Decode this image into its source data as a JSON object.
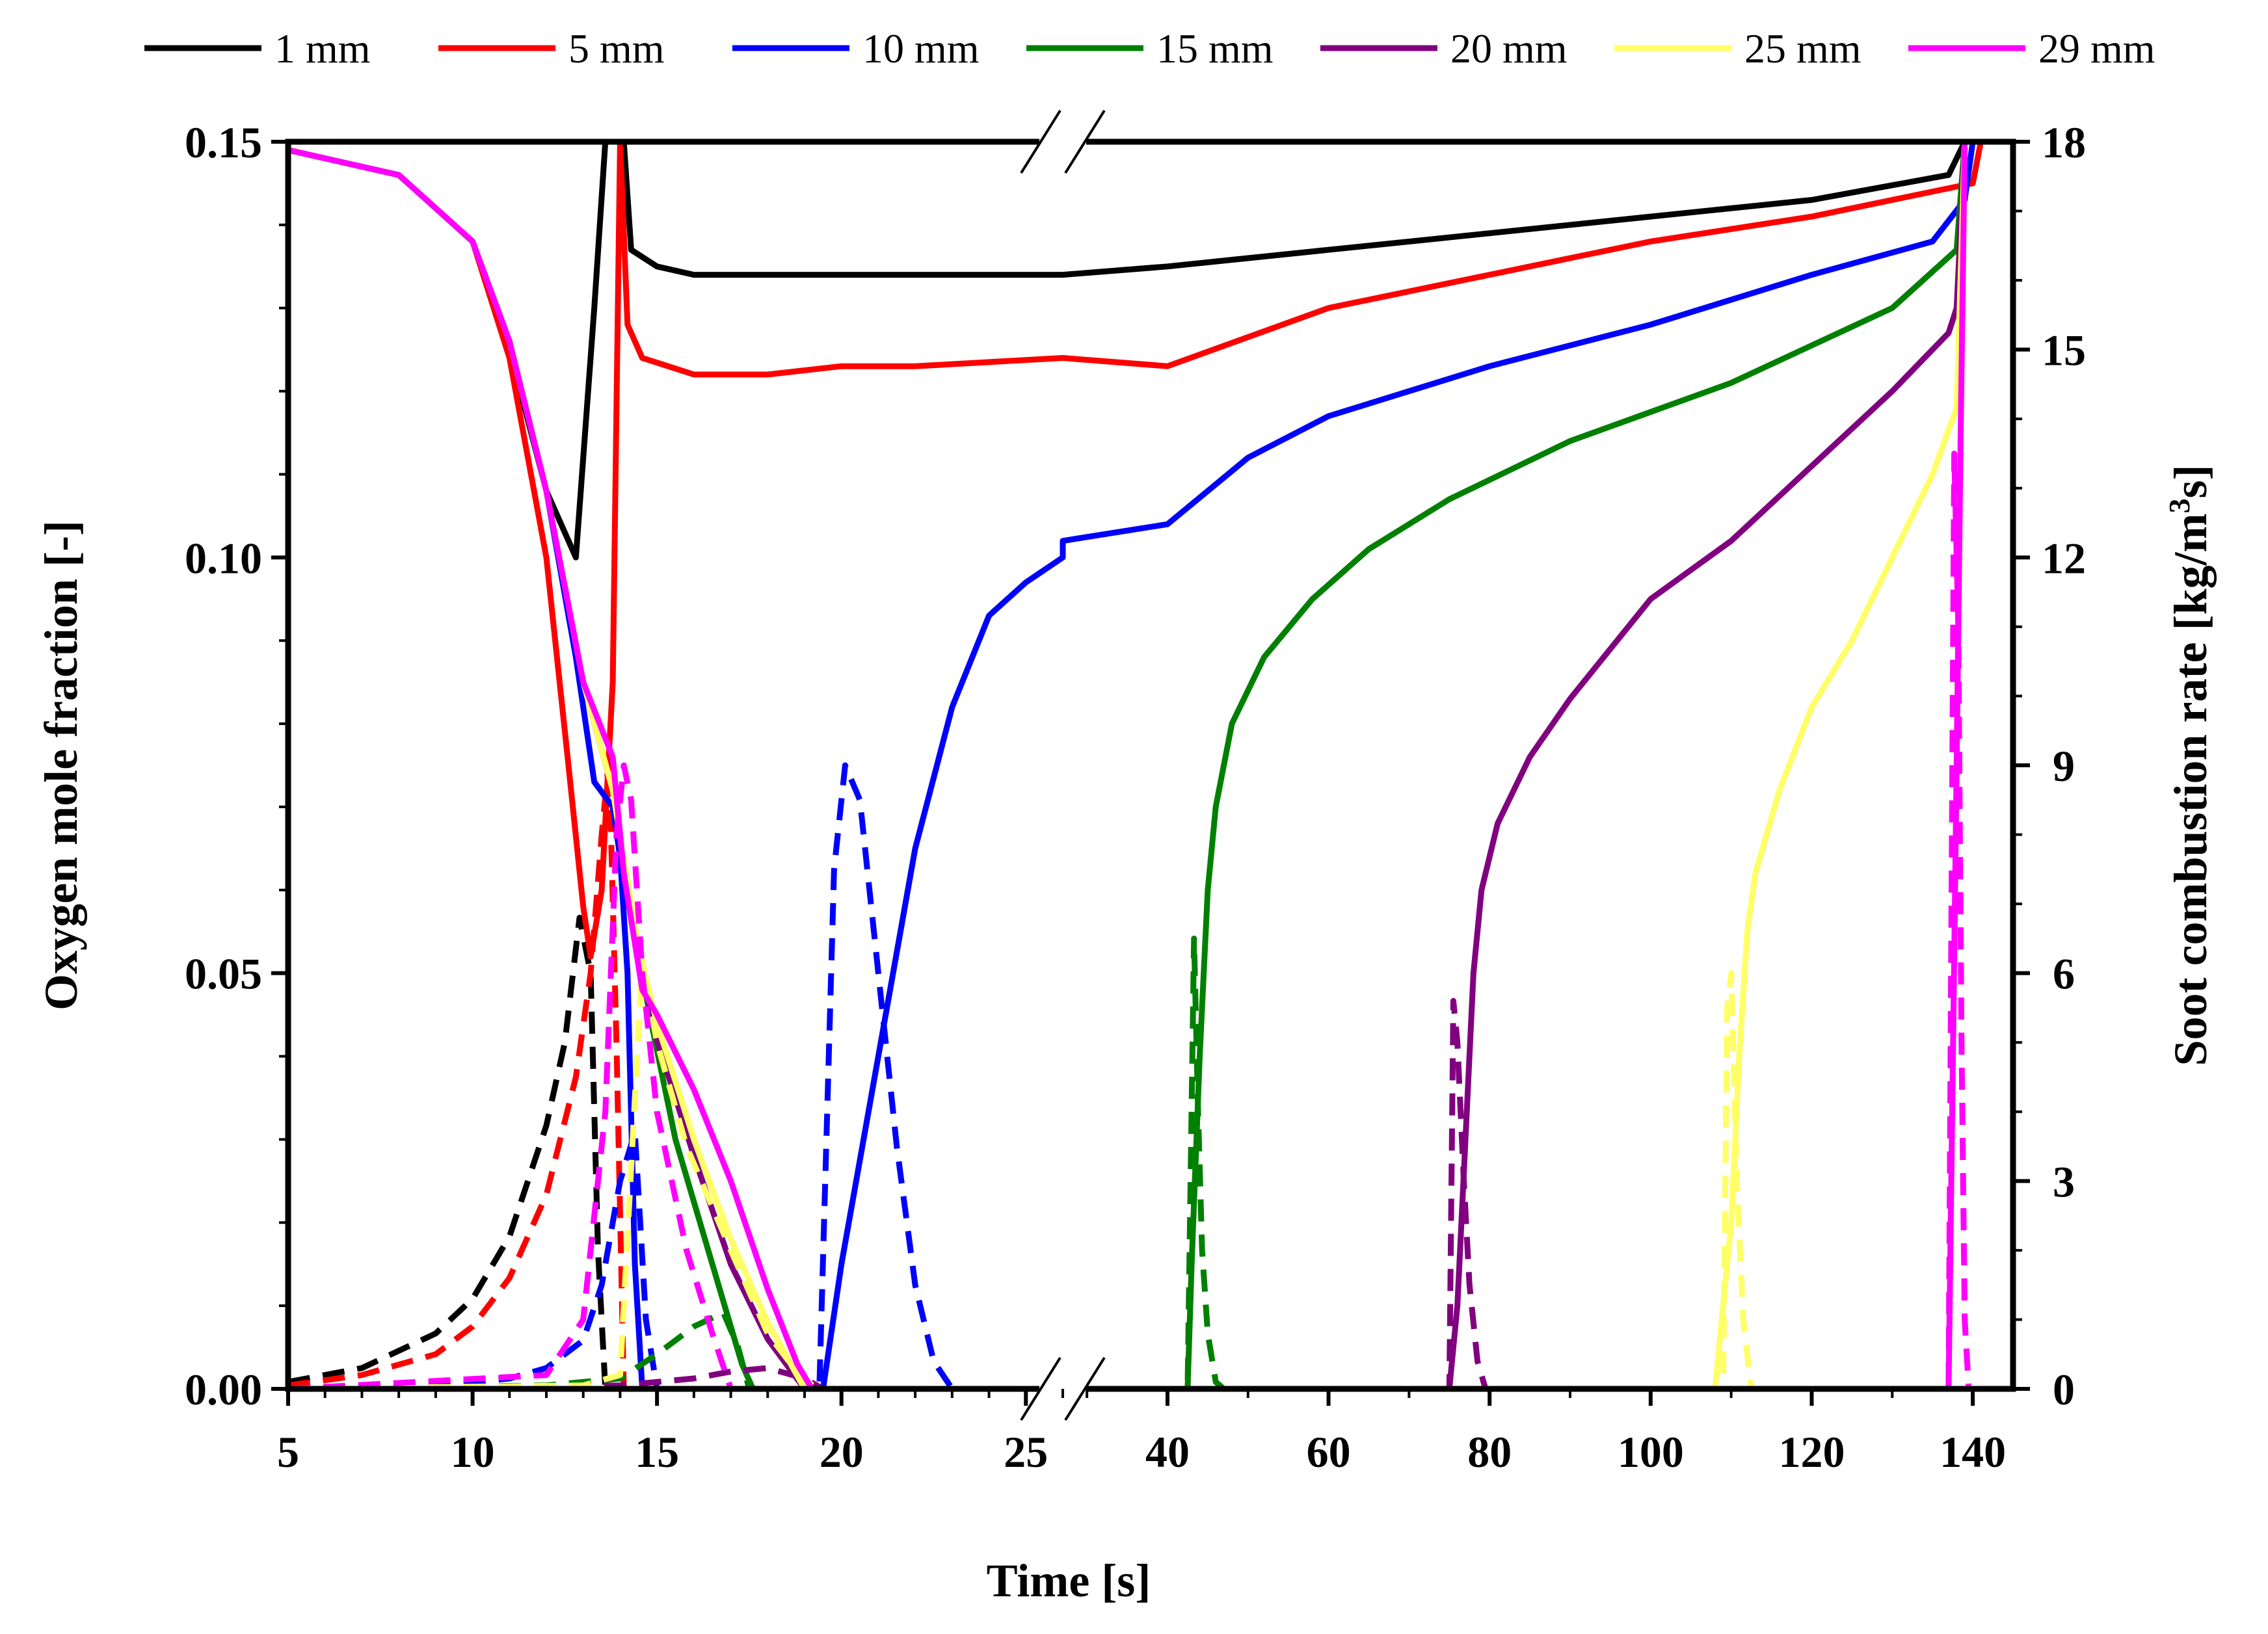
{
  "chart_data": {
    "type": "line",
    "title": "",
    "xlabel": "Time [s]",
    "ylabel_left": "Oxygen mole fraction [-]",
    "ylabel_right_parts": [
      "Soot combustion rate [kg/m",
      "3",
      "s]"
    ],
    "x_break": {
      "segment1": {
        "range": [
          5,
          26
        ],
        "ticks": [
          5,
          10,
          15,
          20,
          25
        ],
        "tick_labels": [
          "5",
          "10",
          "15",
          "20",
          "25"
        ]
      },
      "segment2": {
        "range": [
          27,
          145
        ],
        "ticks": [
          40,
          60,
          80,
          100,
          120,
          140
        ],
        "tick_labels": [
          "40",
          "60",
          "80",
          "100",
          "120",
          "140"
        ]
      }
    },
    "ylim_left": [
      0,
      0.15
    ],
    "yticks_left": [
      0,
      0.05,
      0.1,
      0.15
    ],
    "ytick_labels_left": [
      "0.00",
      "0.05",
      "0.10",
      "0.15"
    ],
    "ylim_right": [
      0,
      18
    ],
    "yticks_right": [
      0,
      3,
      6,
      9,
      12,
      15,
      18
    ],
    "ytick_labels_right": [
      "0",
      "3",
      "6",
      "9",
      "12",
      "15",
      "18"
    ],
    "legend_position": "top",
    "line_styles": {
      "oxygen": "solid (left axis)",
      "soot": "dashed (right axis)"
    },
    "series": [
      {
        "name": "1 mm",
        "color": "#000000",
        "oxygen": [
          [
            5,
            0.149
          ],
          [
            8,
            0.146
          ],
          [
            10,
            0.138
          ],
          [
            11,
            0.125
          ],
          [
            12,
            0.108
          ],
          [
            12.8,
            0.1
          ],
          [
            13.3,
            0.13
          ],
          [
            13.6,
            0.15
          ],
          [
            14.1,
            0.15
          ],
          [
            14.3,
            0.137
          ],
          [
            15,
            0.135
          ],
          [
            16,
            0.134
          ],
          [
            18,
            0.134
          ],
          [
            20,
            0.134
          ],
          [
            22,
            0.134
          ],
          [
            26,
            0.134
          ],
          [
            27,
            0.134
          ],
          [
            40,
            0.135
          ],
          [
            60,
            0.137
          ],
          [
            80,
            0.139
          ],
          [
            100,
            0.141
          ],
          [
            120,
            0.143
          ],
          [
            137,
            0.146
          ],
          [
            139,
            0.15
          ],
          [
            145,
            0.15
          ]
        ],
        "soot": [
          [
            5,
            0.1
          ],
          [
            7,
            0.3
          ],
          [
            9,
            0.8
          ],
          [
            10,
            1.3
          ],
          [
            11,
            2.2
          ],
          [
            12,
            3.8
          ],
          [
            12.5,
            5.0
          ],
          [
            12.9,
            6.8
          ],
          [
            13.2,
            6.0
          ],
          [
            13.4,
            2.0
          ],
          [
            13.6,
            0
          ],
          [
            145,
            0
          ]
        ]
      },
      {
        "name": "5 mm",
        "color": "#ff0000",
        "oxygen": [
          [
            5,
            0.149
          ],
          [
            8,
            0.146
          ],
          [
            10,
            0.138
          ],
          [
            11,
            0.124
          ],
          [
            12,
            0.1
          ],
          [
            12.6,
            0.075
          ],
          [
            13.0,
            0.058
          ],
          [
            13.2,
            0.052
          ],
          [
            13.5,
            0.06
          ],
          [
            13.8,
            0.085
          ],
          [
            14.0,
            0.15
          ],
          [
            14.2,
            0.128
          ],
          [
            14.6,
            0.124
          ],
          [
            16,
            0.122
          ],
          [
            18,
            0.122
          ],
          [
            20,
            0.123
          ],
          [
            22,
            0.123
          ],
          [
            26,
            0.124
          ],
          [
            27,
            0.124
          ],
          [
            40,
            0.123
          ],
          [
            60,
            0.13
          ],
          [
            80,
            0.134
          ],
          [
            100,
            0.138
          ],
          [
            120,
            0.141
          ],
          [
            140,
            0.145
          ],
          [
            141,
            0.15
          ],
          [
            145,
            0.15
          ]
        ],
        "soot": [
          [
            5,
            0.05
          ],
          [
            7,
            0.2
          ],
          [
            9,
            0.5
          ],
          [
            10,
            0.9
          ],
          [
            11,
            1.6
          ],
          [
            12,
            2.8
          ],
          [
            12.8,
            4.5
          ],
          [
            13.2,
            6.0
          ],
          [
            13.5,
            8.0
          ],
          [
            13.7,
            9.1
          ],
          [
            13.9,
            5.0
          ],
          [
            14.1,
            0
          ],
          [
            145,
            0
          ]
        ]
      },
      {
        "name": "10 mm",
        "color": "#0000ff",
        "oxygen": [
          [
            5,
            0.149
          ],
          [
            8,
            0.146
          ],
          [
            10,
            0.138
          ],
          [
            11,
            0.126
          ],
          [
            12,
            0.108
          ],
          [
            12.8,
            0.088
          ],
          [
            13.3,
            0.073
          ],
          [
            13.8,
            0.07
          ],
          [
            14.0,
            0.064
          ],
          [
            14.2,
            0.05
          ],
          [
            14.4,
            0.015
          ],
          [
            14.6,
            0
          ],
          [
            19.5,
            0
          ],
          [
            20.0,
            0.015
          ],
          [
            21.0,
            0.04
          ],
          [
            22.0,
            0.065
          ],
          [
            23.0,
            0.082
          ],
          [
            24.0,
            0.093
          ],
          [
            25.0,
            0.097
          ],
          [
            26,
            0.1
          ],
          [
            27,
            0.102
          ],
          [
            40,
            0.104
          ],
          [
            50,
            0.112
          ],
          [
            60,
            0.117
          ],
          [
            80,
            0.123
          ],
          [
            100,
            0.128
          ],
          [
            120,
            0.134
          ],
          [
            135,
            0.138
          ],
          [
            139,
            0.143
          ],
          [
            140,
            0.15
          ],
          [
            145,
            0.15
          ]
        ],
        "soot": [
          [
            5,
            0
          ],
          [
            9,
            0.05
          ],
          [
            11,
            0.15
          ],
          [
            12,
            0.3
          ],
          [
            13,
            0.7
          ],
          [
            13.5,
            1.5
          ],
          [
            14.0,
            3.0
          ],
          [
            14.4,
            3.7
          ],
          [
            14.7,
            1.0
          ],
          [
            15,
            0
          ],
          [
            19.4,
            0
          ],
          [
            19.8,
            7.5
          ],
          [
            20.1,
            9.0
          ],
          [
            20.5,
            8.5
          ],
          [
            21.0,
            6.0
          ],
          [
            21.5,
            3.5
          ],
          [
            22.0,
            1.5
          ],
          [
            22.5,
            0.4
          ],
          [
            23,
            0
          ],
          [
            145,
            0
          ]
        ]
      },
      {
        "name": "15 mm",
        "color": "#008000",
        "oxygen": [
          [
            5,
            0.149
          ],
          [
            8,
            0.146
          ],
          [
            10,
            0.138
          ],
          [
            11,
            0.126
          ],
          [
            12,
            0.108
          ],
          [
            13,
            0.085
          ],
          [
            13.8,
            0.072
          ],
          [
            14.2,
            0.06
          ],
          [
            14.8,
            0.045
          ],
          [
            15.5,
            0.03
          ],
          [
            16.5,
            0.015
          ],
          [
            17.3,
            0.003
          ],
          [
            17.6,
            0
          ],
          [
            42.5,
            0
          ],
          [
            43,
            0.015
          ],
          [
            44,
            0.04
          ],
          [
            45,
            0.06
          ],
          [
            46,
            0.07
          ],
          [
            48,
            0.08
          ],
          [
            52,
            0.088
          ],
          [
            58,
            0.095
          ],
          [
            65,
            0.101
          ],
          [
            75,
            0.107
          ],
          [
            90,
            0.114
          ],
          [
            110,
            0.121
          ],
          [
            130,
            0.13
          ],
          [
            138,
            0.137
          ],
          [
            139,
            0.15
          ],
          [
            145,
            0.15
          ]
        ],
        "soot": [
          [
            5,
            0
          ],
          [
            12,
            0.05
          ],
          [
            14,
            0.15
          ],
          [
            15,
            0.5
          ],
          [
            16,
            0.9
          ],
          [
            16.8,
            1.1
          ],
          [
            17.2,
            0.6
          ],
          [
            17.5,
            0
          ],
          [
            42.5,
            0
          ],
          [
            43.3,
            6.5
          ],
          [
            43.8,
            4.0
          ],
          [
            44.3,
            2.0
          ],
          [
            45,
            0.8
          ],
          [
            46,
            0.1
          ],
          [
            47,
            0
          ],
          [
            145,
            0
          ]
        ]
      },
      {
        "name": "20 mm",
        "color": "#800080",
        "oxygen": [
          [
            5,
            0.149
          ],
          [
            8,
            0.146
          ],
          [
            10,
            0.138
          ],
          [
            11,
            0.126
          ],
          [
            12,
            0.108
          ],
          [
            13,
            0.085
          ],
          [
            13.8,
            0.072
          ],
          [
            14.5,
            0.052
          ],
          [
            15,
            0.042
          ],
          [
            16,
            0.028
          ],
          [
            17,
            0.015
          ],
          [
            18,
            0.006
          ],
          [
            19,
            0
          ],
          [
            75,
            0
          ],
          [
            76,
            0.01
          ],
          [
            77,
            0.03
          ],
          [
            78,
            0.05
          ],
          [
            79,
            0.06
          ],
          [
            81,
            0.068
          ],
          [
            85,
            0.076
          ],
          [
            90,
            0.083
          ],
          [
            100,
            0.095
          ],
          [
            110,
            0.102
          ],
          [
            120,
            0.111
          ],
          [
            130,
            0.12
          ],
          [
            137,
            0.127
          ],
          [
            138,
            0.13
          ],
          [
            139,
            0.15
          ],
          [
            145,
            0.15
          ]
        ],
        "soot": [
          [
            5,
            0
          ],
          [
            14,
            0.05
          ],
          [
            16,
            0.15
          ],
          [
            17,
            0.25
          ],
          [
            18,
            0.3
          ],
          [
            19,
            0.15
          ],
          [
            19.5,
            0
          ],
          [
            75,
            0
          ],
          [
            75.5,
            5.6
          ],
          [
            76,
            5.0
          ],
          [
            76.8,
            3.0
          ],
          [
            77.5,
            1.5
          ],
          [
            78.5,
            0.4
          ],
          [
            79.5,
            0
          ],
          [
            145,
            0
          ]
        ]
      },
      {
        "name": "25 mm",
        "color": "#ffff66",
        "oxygen": [
          [
            5,
            0.149
          ],
          [
            8,
            0.146
          ],
          [
            10,
            0.138
          ],
          [
            11,
            0.126
          ],
          [
            12,
            0.108
          ],
          [
            13,
            0.085
          ],
          [
            13.8,
            0.072
          ],
          [
            14.5,
            0.053
          ],
          [
            15,
            0.044
          ],
          [
            16,
            0.03
          ],
          [
            17,
            0.018
          ],
          [
            18,
            0.008
          ],
          [
            19,
            0
          ],
          [
            108,
            0
          ],
          [
            110,
            0.02
          ],
          [
            111,
            0.04
          ],
          [
            112,
            0.055
          ],
          [
            113,
            0.062
          ],
          [
            116,
            0.072
          ],
          [
            120,
            0.082
          ],
          [
            125,
            0.09
          ],
          [
            130,
            0.1
          ],
          [
            135,
            0.11
          ],
          [
            138,
            0.118
          ],
          [
            139,
            0.15
          ],
          [
            145,
            0.15
          ]
        ],
        "soot": [
          [
            5,
            0
          ],
          [
            13,
            0.05
          ],
          [
            14,
            0.2
          ],
          [
            14.6,
            6.2
          ],
          [
            15,
            5.0
          ],
          [
            15.8,
            3.5
          ],
          [
            17,
            2.0
          ],
          [
            18,
            0.8
          ],
          [
            19,
            0.1
          ],
          [
            19.5,
            0
          ],
          [
            109,
            0
          ],
          [
            109.5,
            5.5
          ],
          [
            110,
            6.0
          ],
          [
            110.7,
            3.0
          ],
          [
            111.5,
            1.0
          ],
          [
            112.5,
            0
          ],
          [
            145,
            0
          ]
        ]
      },
      {
        "name": "29 mm",
        "color": "#ff00ff",
        "oxygen": [
          [
            5,
            0.149
          ],
          [
            8,
            0.146
          ],
          [
            10,
            0.138
          ],
          [
            11,
            0.126
          ],
          [
            12,
            0.108
          ],
          [
            13,
            0.085
          ],
          [
            13.8,
            0.076
          ],
          [
            14.1,
            0.062
          ],
          [
            14.6,
            0.048
          ],
          [
            15,
            0.045
          ],
          [
            16,
            0.036
          ],
          [
            17,
            0.025
          ],
          [
            18,
            0.012
          ],
          [
            18.8,
            0.003
          ],
          [
            19.2,
            0
          ],
          [
            137,
            0
          ],
          [
            137.8,
            0.06
          ],
          [
            138.5,
            0.115
          ],
          [
            139,
            0.15
          ],
          [
            145,
            0.15
          ]
        ],
        "soot": [
          [
            5,
            0
          ],
          [
            12,
            0.2
          ],
          [
            13,
            1.0
          ],
          [
            13.6,
            4.0
          ],
          [
            13.9,
            8.0
          ],
          [
            14.1,
            9.0
          ],
          [
            14.3,
            8.5
          ],
          [
            14.6,
            6.0
          ],
          [
            15,
            4.0
          ],
          [
            15.8,
            2.0
          ],
          [
            16.5,
            0.8
          ],
          [
            17,
            0
          ],
          [
            137,
            0
          ],
          [
            137.3,
            6.0
          ],
          [
            137.7,
            13.5
          ],
          [
            138.2,
            11.0
          ],
          [
            138.6,
            5.0
          ],
          [
            139,
            1.0
          ],
          [
            139.5,
            0
          ],
          [
            145,
            0
          ]
        ]
      }
    ]
  }
}
